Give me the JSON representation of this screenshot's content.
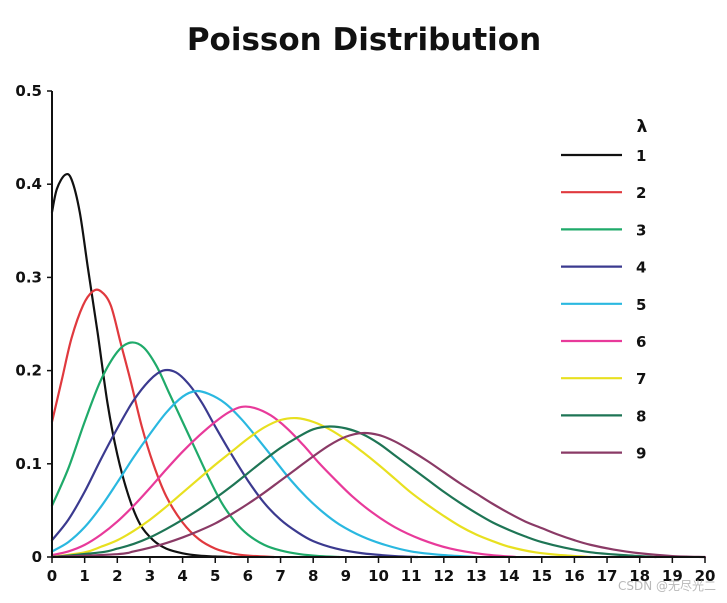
{
  "chart_data": {
    "type": "line",
    "title": "Poisson Distribution",
    "xlabel": "",
    "ylabel": "",
    "xlim": [
      0,
      20
    ],
    "ylim": [
      0,
      0.5
    ],
    "x_ticks": [
      "0",
      "1",
      "2",
      "3",
      "4",
      "5",
      "6",
      "7",
      "8",
      "9",
      "10",
      "11",
      "12",
      "13",
      "14",
      "15",
      "16",
      "17",
      "18",
      "19",
      "20"
    ],
    "y_ticks": [
      "0",
      "0.1",
      "0.2",
      "0.3",
      "0.4",
      "0.5"
    ],
    "grid": false,
    "legend_title": "λ",
    "legend_position": "top-right",
    "series": [
      {
        "name": "1",
        "color": "#111111",
        "points": [
          [
            0,
            0.37
          ],
          [
            0.15,
            0.395
          ],
          [
            0.4,
            0.41
          ],
          [
            0.6,
            0.405
          ],
          [
            0.85,
            0.37
          ],
          [
            1.1,
            0.31
          ],
          [
            1.4,
            0.24
          ],
          [
            1.7,
            0.165
          ],
          [
            2.0,
            0.11
          ],
          [
            2.35,
            0.065
          ],
          [
            2.7,
            0.035
          ],
          [
            3.1,
            0.018
          ],
          [
            3.5,
            0.009
          ],
          [
            4.0,
            0.004
          ],
          [
            4.5,
            0.0015
          ],
          [
            5.0,
            0.0005
          ],
          [
            5.5,
            0
          ]
        ]
      },
      {
        "name": "2",
        "color": "#e0393e",
        "points": [
          [
            0,
            0.145
          ],
          [
            0.3,
            0.19
          ],
          [
            0.6,
            0.235
          ],
          [
            0.95,
            0.27
          ],
          [
            1.25,
            0.285
          ],
          [
            1.5,
            0.285
          ],
          [
            1.8,
            0.27
          ],
          [
            2.1,
            0.23
          ],
          [
            2.4,
            0.19
          ],
          [
            2.75,
            0.14
          ],
          [
            3.1,
            0.1
          ],
          [
            3.5,
            0.065
          ],
          [
            4.0,
            0.037
          ],
          [
            4.5,
            0.019
          ],
          [
            5.0,
            0.009
          ],
          [
            5.5,
            0.004
          ],
          [
            6.0,
            0.0015
          ],
          [
            6.8,
            0
          ]
        ]
      },
      {
        "name": "3",
        "color": "#1faa6a",
        "points": [
          [
            0,
            0.055
          ],
          [
            0.5,
            0.095
          ],
          [
            1.0,
            0.145
          ],
          [
            1.5,
            0.19
          ],
          [
            2.0,
            0.22
          ],
          [
            2.4,
            0.23
          ],
          [
            2.8,
            0.225
          ],
          [
            3.2,
            0.205
          ],
          [
            3.6,
            0.175
          ],
          [
            4.0,
            0.145
          ],
          [
            4.4,
            0.115
          ],
          [
            4.8,
            0.085
          ],
          [
            5.2,
            0.058
          ],
          [
            5.6,
            0.038
          ],
          [
            6.0,
            0.024
          ],
          [
            6.5,
            0.013
          ],
          [
            7.0,
            0.007
          ],
          [
            7.6,
            0.003
          ],
          [
            8.2,
            0.001
          ],
          [
            8.8,
            0
          ]
        ]
      },
      {
        "name": "4",
        "color": "#3b3a8f",
        "points": [
          [
            0,
            0.018
          ],
          [
            0.5,
            0.04
          ],
          [
            1.0,
            0.07
          ],
          [
            1.5,
            0.105
          ],
          [
            2.0,
            0.138
          ],
          [
            2.5,
            0.168
          ],
          [
            3.0,
            0.19
          ],
          [
            3.4,
            0.2
          ],
          [
            3.8,
            0.198
          ],
          [
            4.2,
            0.185
          ],
          [
            4.6,
            0.165
          ],
          [
            5.0,
            0.14
          ],
          [
            5.5,
            0.11
          ],
          [
            6.0,
            0.082
          ],
          [
            6.5,
            0.058
          ],
          [
            7.0,
            0.04
          ],
          [
            7.5,
            0.027
          ],
          [
            8.0,
            0.017
          ],
          [
            8.7,
            0.009
          ],
          [
            9.5,
            0.004
          ],
          [
            10.5,
            0.001
          ],
          [
            11.2,
            0
          ]
        ]
      },
      {
        "name": "5",
        "color": "#2ab8e0",
        "points": [
          [
            0,
            0.006
          ],
          [
            0.5,
            0.016
          ],
          [
            1.0,
            0.032
          ],
          [
            1.5,
            0.054
          ],
          [
            2.0,
            0.08
          ],
          [
            2.5,
            0.107
          ],
          [
            3.0,
            0.132
          ],
          [
            3.5,
            0.155
          ],
          [
            4.0,
            0.172
          ],
          [
            4.4,
            0.178
          ],
          [
            4.8,
            0.175
          ],
          [
            5.3,
            0.165
          ],
          [
            5.8,
            0.148
          ],
          [
            6.3,
            0.127
          ],
          [
            6.8,
            0.105
          ],
          [
            7.3,
            0.083
          ],
          [
            7.8,
            0.064
          ],
          [
            8.3,
            0.048
          ],
          [
            8.8,
            0.035
          ],
          [
            9.5,
            0.022
          ],
          [
            10.2,
            0.013
          ],
          [
            11.0,
            0.006
          ],
          [
            12.0,
            0.002
          ],
          [
            13.0,
            0
          ]
        ]
      },
      {
        "name": "6",
        "color": "#e83a9a",
        "points": [
          [
            0,
            0.002
          ],
          [
            0.5,
            0.006
          ],
          [
            1.0,
            0.013
          ],
          [
            1.5,
            0.024
          ],
          [
            2.0,
            0.038
          ],
          [
            2.5,
            0.055
          ],
          [
            3.0,
            0.074
          ],
          [
            3.5,
            0.094
          ],
          [
            4.0,
            0.113
          ],
          [
            4.5,
            0.13
          ],
          [
            5.0,
            0.145
          ],
          [
            5.4,
            0.155
          ],
          [
            5.8,
            0.161
          ],
          [
            6.2,
            0.16
          ],
          [
            6.7,
            0.152
          ],
          [
            7.2,
            0.138
          ],
          [
            7.7,
            0.12
          ],
          [
            8.2,
            0.1
          ],
          [
            8.7,
            0.082
          ],
          [
            9.2,
            0.065
          ],
          [
            9.8,
            0.048
          ],
          [
            10.5,
            0.032
          ],
          [
            11.3,
            0.019
          ],
          [
            12.2,
            0.009
          ],
          [
            13.2,
            0.003
          ],
          [
            14.2,
            0
          ]
        ]
      },
      {
        "name": "7",
        "color": "#e8e020",
        "points": [
          [
            0,
            0
          ],
          [
            1.0,
            0.005
          ],
          [
            1.5,
            0.011
          ],
          [
            2.0,
            0.018
          ],
          [
            2.5,
            0.028
          ],
          [
            3.0,
            0.04
          ],
          [
            3.5,
            0.054
          ],
          [
            4.0,
            0.069
          ],
          [
            4.5,
            0.084
          ],
          [
            5.0,
            0.099
          ],
          [
            5.5,
            0.113
          ],
          [
            6.0,
            0.127
          ],
          [
            6.5,
            0.139
          ],
          [
            7.0,
            0.147
          ],
          [
            7.5,
            0.149
          ],
          [
            8.0,
            0.145
          ],
          [
            8.5,
            0.137
          ],
          [
            9.0,
            0.126
          ],
          [
            9.5,
            0.113
          ],
          [
            10.0,
            0.099
          ],
          [
            10.5,
            0.084
          ],
          [
            11.0,
            0.069
          ],
          [
            11.5,
            0.056
          ],
          [
            12.0,
            0.044
          ],
          [
            12.5,
            0.033
          ],
          [
            13.0,
            0.024
          ],
          [
            13.5,
            0.017
          ],
          [
            14.0,
            0.011
          ],
          [
            14.8,
            0.005
          ],
          [
            15.6,
            0.002
          ],
          [
            16.5,
            0
          ]
        ]
      },
      {
        "name": "8",
        "color": "#1e7555",
        "points": [
          [
            0,
            0
          ],
          [
            1.5,
            0.005
          ],
          [
            2.0,
            0.009
          ],
          [
            2.5,
            0.014
          ],
          [
            3.0,
            0.021
          ],
          [
            3.5,
            0.03
          ],
          [
            4.0,
            0.04
          ],
          [
            4.5,
            0.051
          ],
          [
            5.0,
            0.063
          ],
          [
            5.5,
            0.076
          ],
          [
            6.0,
            0.09
          ],
          [
            6.5,
            0.104
          ],
          [
            7.0,
            0.117
          ],
          [
            7.5,
            0.128
          ],
          [
            8.0,
            0.137
          ],
          [
            8.5,
            0.14
          ],
          [
            9.0,
            0.138
          ],
          [
            9.5,
            0.132
          ],
          [
            10.0,
            0.122
          ],
          [
            10.5,
            0.109
          ],
          [
            11.0,
            0.096
          ],
          [
            11.5,
            0.083
          ],
          [
            12.0,
            0.07
          ],
          [
            12.5,
            0.058
          ],
          [
            13.0,
            0.047
          ],
          [
            13.5,
            0.037
          ],
          [
            14.0,
            0.029
          ],
          [
            14.5,
            0.022
          ],
          [
            15.0,
            0.016
          ],
          [
            15.7,
            0.01
          ],
          [
            16.5,
            0.005
          ],
          [
            17.5,
            0.002
          ],
          [
            18.5,
            0
          ]
        ]
      },
      {
        "name": "9",
        "color": "#8a3a66",
        "points": [
          [
            0,
            0
          ],
          [
            2.0,
            0.003
          ],
          [
            2.5,
            0.006
          ],
          [
            3.0,
            0.01
          ],
          [
            3.5,
            0.015
          ],
          [
            4.0,
            0.021
          ],
          [
            4.5,
            0.028
          ],
          [
            5.0,
            0.036
          ],
          [
            5.5,
            0.046
          ],
          [
            6.0,
            0.057
          ],
          [
            6.5,
            0.069
          ],
          [
            7.0,
            0.082
          ],
          [
            7.5,
            0.095
          ],
          [
            8.0,
            0.108
          ],
          [
            8.5,
            0.12
          ],
          [
            9.0,
            0.129
          ],
          [
            9.5,
            0.133
          ],
          [
            10.0,
            0.131
          ],
          [
            10.5,
            0.124
          ],
          [
            11.0,
            0.114
          ],
          [
            11.5,
            0.103
          ],
          [
            12.0,
            0.091
          ],
          [
            12.5,
            0.079
          ],
          [
            13.0,
            0.068
          ],
          [
            13.5,
            0.057
          ],
          [
            14.0,
            0.047
          ],
          [
            14.5,
            0.038
          ],
          [
            15.0,
            0.031
          ],
          [
            15.5,
            0.024
          ],
          [
            16.0,
            0.018
          ],
          [
            16.5,
            0.013
          ],
          [
            17.2,
            0.008
          ],
          [
            18.0,
            0.004
          ],
          [
            19.0,
            0.001
          ],
          [
            20.0,
            0
          ]
        ]
      }
    ]
  },
  "watermark": "CSDN @无尽光二"
}
